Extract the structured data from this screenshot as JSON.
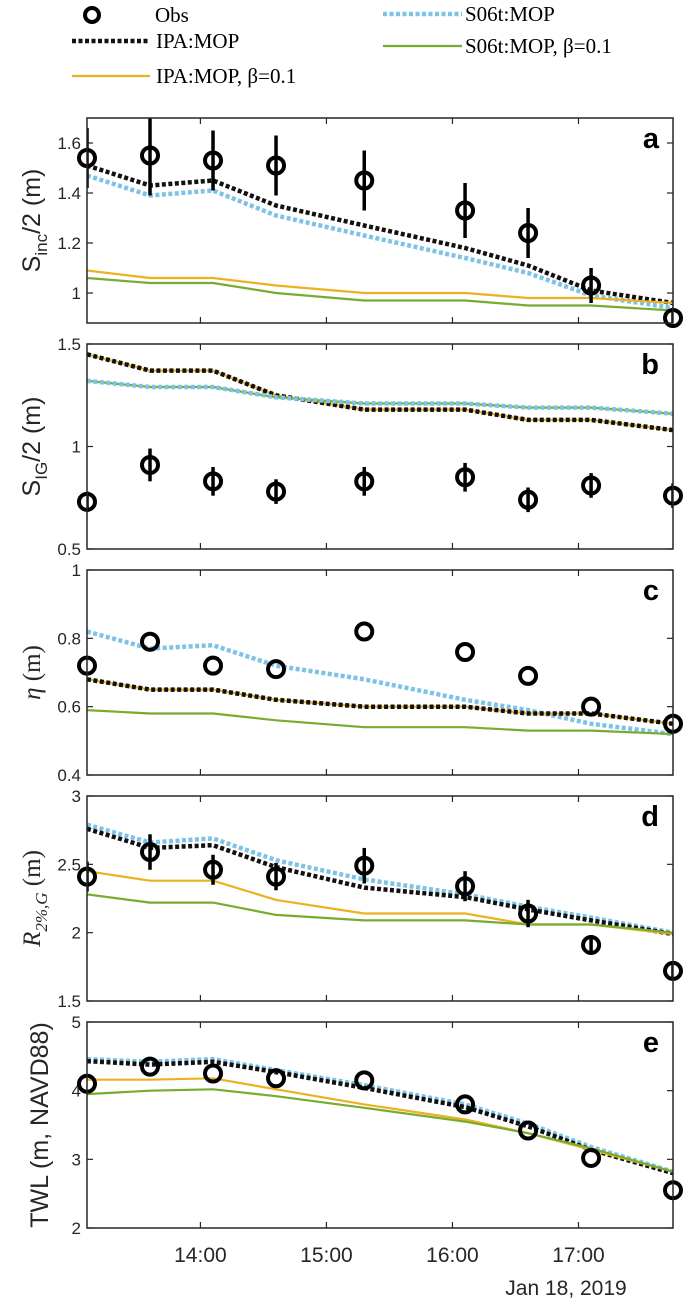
{
  "legend": {
    "items": [
      {
        "key": "obs",
        "label": "Obs"
      },
      {
        "key": "ipa",
        "label": "IPA:MOP"
      },
      {
        "key": "ipa_b",
        "label": "IPA:MOP, β=0.1"
      },
      {
        "key": "s06",
        "label": "S06t:MOP"
      },
      {
        "key": "s06_b",
        "label": "S06t:MOP, β=0.1"
      }
    ]
  },
  "styles": {
    "obs": {
      "color": "#000000"
    },
    "ipa": {
      "color": "#111111"
    },
    "ipa_b": {
      "color": "#EDB120"
    },
    "s06": {
      "color": "#7EC3E6"
    },
    "s06_b": {
      "color": "#77AC30"
    }
  },
  "xaxis": {
    "ticks": [
      14,
      15,
      16,
      17
    ],
    "tick_labels": [
      "14:00",
      "15:00",
      "16:00",
      "17:00"
    ],
    "xlim": [
      13.1,
      17.75
    ],
    "date_label": "Jan 18, 2019"
  },
  "chart_data": [
    {
      "type": "line",
      "panel_letter": "a",
      "ylabel": "S_inc/2 (m)",
      "ylabel_main": "S",
      "ylabel_sub": "inc",
      "ylabel_rest": "/2 (m)",
      "ylim": [
        0.88,
        1.7
      ],
      "yticks": [
        1,
        1.2,
        1.4,
        1.6
      ],
      "ytick_labels": [
        "1",
        "1.2",
        "1.4",
        "1.6"
      ],
      "x": [
        13.1,
        13.6,
        14.1,
        14.6,
        15.3,
        16.1,
        16.6,
        17.1,
        17.75
      ],
      "obs": {
        "values": [
          1.54,
          1.55,
          1.53,
          1.51,
          1.45,
          1.33,
          1.24,
          1.03,
          0.9
        ],
        "err": [
          0.12,
          0.16,
          0.12,
          0.12,
          0.12,
          0.11,
          0.1,
          0.07,
          0.04
        ]
      },
      "series": [
        {
          "key": "ipa",
          "values": [
            1.51,
            1.43,
            1.45,
            1.35,
            1.27,
            1.18,
            1.11,
            1.01,
            0.96
          ]
        },
        {
          "key": "s06",
          "values": [
            1.47,
            1.39,
            1.41,
            1.31,
            1.23,
            1.14,
            1.08,
            0.99,
            0.94
          ]
        },
        {
          "key": "ipa_b",
          "values": [
            1.09,
            1.06,
            1.06,
            1.03,
            1.0,
            1.0,
            0.98,
            0.98,
            0.96
          ]
        },
        {
          "key": "s06_b",
          "values": [
            1.06,
            1.04,
            1.04,
            1.0,
            0.97,
            0.97,
            0.95,
            0.95,
            0.93
          ]
        }
      ]
    },
    {
      "type": "line",
      "panel_letter": "b",
      "ylabel": "S_IG/2 (m)",
      "ylabel_main": "S",
      "ylabel_sub": "IG",
      "ylabel_rest": "/2 (m)",
      "ylim": [
        0.5,
        1.5
      ],
      "yticks": [
        0.5,
        1,
        1.5
      ],
      "ytick_labels": [
        "0.5",
        "1",
        "1.5"
      ],
      "x": [
        13.1,
        13.6,
        14.1,
        14.6,
        15.3,
        16.1,
        16.6,
        17.1,
        17.75
      ],
      "obs": {
        "values": [
          0.73,
          0.91,
          0.83,
          0.78,
          0.83,
          0.85,
          0.74,
          0.81,
          0.76
        ],
        "err": [
          0.05,
          0.08,
          0.07,
          0.06,
          0.07,
          0.07,
          0.06,
          0.06,
          0.06
        ]
      },
      "series": [
        {
          "key": "ipa_b",
          "values": [
            1.45,
            1.37,
            1.37,
            1.25,
            1.18,
            1.18,
            1.13,
            1.13,
            1.08
          ]
        },
        {
          "key": "ipa",
          "values": [
            1.45,
            1.37,
            1.37,
            1.25,
            1.18,
            1.18,
            1.13,
            1.13,
            1.08
          ]
        },
        {
          "key": "s06_b",
          "values": [
            1.32,
            1.29,
            1.29,
            1.24,
            1.21,
            1.21,
            1.19,
            1.19,
            1.16
          ]
        },
        {
          "key": "s06",
          "values": [
            1.32,
            1.29,
            1.29,
            1.24,
            1.21,
            1.21,
            1.19,
            1.19,
            1.16
          ]
        }
      ]
    },
    {
      "type": "line",
      "panel_letter": "c",
      "ylabel": "η (m)",
      "ylabel_main": "η",
      "ylabel_sub": "",
      "ylabel_rest": " (m)",
      "ylim": [
        0.4,
        1.0
      ],
      "yticks": [
        0.4,
        0.6,
        0.8,
        1
      ],
      "ytick_labels": [
        "0.4",
        "0.6",
        "0.8",
        "1"
      ],
      "x": [
        13.1,
        13.6,
        14.1,
        14.6,
        15.3,
        16.1,
        16.6,
        17.1,
        17.75
      ],
      "obs": {
        "values": [
          0.72,
          0.79,
          0.72,
          0.71,
          0.82,
          0.76,
          0.69,
          0.6,
          0.55
        ],
        "err": [
          0,
          0,
          0,
          0,
          0,
          0,
          0,
          0,
          0
        ]
      },
      "series": [
        {
          "key": "s06",
          "values": [
            0.82,
            0.77,
            0.78,
            0.72,
            0.68,
            0.62,
            0.59,
            0.55,
            0.52
          ]
        },
        {
          "key": "ipa_b",
          "values": [
            0.68,
            0.65,
            0.65,
            0.62,
            0.6,
            0.6,
            0.58,
            0.58,
            0.55
          ]
        },
        {
          "key": "ipa",
          "values": [
            0.68,
            0.65,
            0.65,
            0.62,
            0.6,
            0.6,
            0.58,
            0.58,
            0.55
          ]
        },
        {
          "key": "s06_b",
          "values": [
            0.59,
            0.58,
            0.58,
            0.56,
            0.54,
            0.54,
            0.53,
            0.53,
            0.52
          ]
        }
      ]
    },
    {
      "type": "line",
      "panel_letter": "d",
      "ylabel": "R_2%,G (m)",
      "ylabel_main": "R",
      "ylabel_sub": "2%,G",
      "ylabel_rest": " (m)",
      "ylim": [
        1.5,
        3.0
      ],
      "yticks": [
        1.5,
        2,
        2.5,
        3
      ],
      "ytick_labels": [
        "1.5",
        "2",
        "2.5",
        "3"
      ],
      "x": [
        13.1,
        13.6,
        14.1,
        14.6,
        15.3,
        16.1,
        16.6,
        17.1,
        17.75
      ],
      "obs": {
        "values": [
          2.41,
          2.59,
          2.46,
          2.41,
          2.49,
          2.34,
          2.14,
          1.91,
          1.72
        ],
        "err": [
          0.11,
          0.13,
          0.11,
          0.1,
          0.13,
          0.11,
          0.1,
          0.07,
          0.05
        ]
      },
      "series": [
        {
          "key": "s06",
          "values": [
            2.79,
            2.66,
            2.69,
            2.53,
            2.39,
            2.28,
            2.19,
            2.11,
            2.0
          ]
        },
        {
          "key": "ipa",
          "values": [
            2.76,
            2.62,
            2.64,
            2.48,
            2.33,
            2.26,
            2.17,
            2.09,
            1.99
          ]
        },
        {
          "key": "ipa_b",
          "values": [
            2.45,
            2.38,
            2.38,
            2.24,
            2.14,
            2.14,
            2.06,
            2.06,
            1.99
          ]
        },
        {
          "key": "s06_b",
          "values": [
            2.28,
            2.22,
            2.22,
            2.13,
            2.09,
            2.09,
            2.06,
            2.06,
            2.0
          ]
        }
      ]
    },
    {
      "type": "line",
      "panel_letter": "e",
      "ylabel": "TWL (m, NAVD88)",
      "ylabel_main": "TWL (m, NAVD88)",
      "ylabel_sub": "",
      "ylabel_rest": "",
      "ylim": [
        2,
        5
      ],
      "yticks": [
        2,
        3,
        4,
        5
      ],
      "ytick_labels": [
        "2",
        "3",
        "4",
        "5"
      ],
      "x": [
        13.1,
        13.6,
        14.1,
        14.6,
        15.3,
        16.1,
        16.6,
        17.1,
        17.75
      ],
      "obs": {
        "values": [
          4.1,
          4.35,
          4.25,
          4.18,
          4.15,
          3.8,
          3.42,
          3.02,
          2.55
        ],
        "err": [
          0,
          0,
          0,
          0,
          0,
          0,
          0,
          0,
          0
        ]
      },
      "series": [
        {
          "key": "s06",
          "values": [
            4.46,
            4.42,
            4.46,
            4.3,
            4.08,
            3.8,
            3.52,
            3.18,
            2.82
          ]
        },
        {
          "key": "ipa",
          "values": [
            4.43,
            4.38,
            4.42,
            4.27,
            4.04,
            3.76,
            3.48,
            3.14,
            2.8
          ]
        },
        {
          "key": "ipa_b",
          "values": [
            4.16,
            4.16,
            4.18,
            4.02,
            3.8,
            3.58,
            3.38,
            3.14,
            2.82
          ]
        },
        {
          "key": "s06_b",
          "values": [
            3.95,
            4.0,
            4.02,
            3.92,
            3.75,
            3.55,
            3.38,
            3.16,
            2.82
          ]
        }
      ]
    }
  ]
}
